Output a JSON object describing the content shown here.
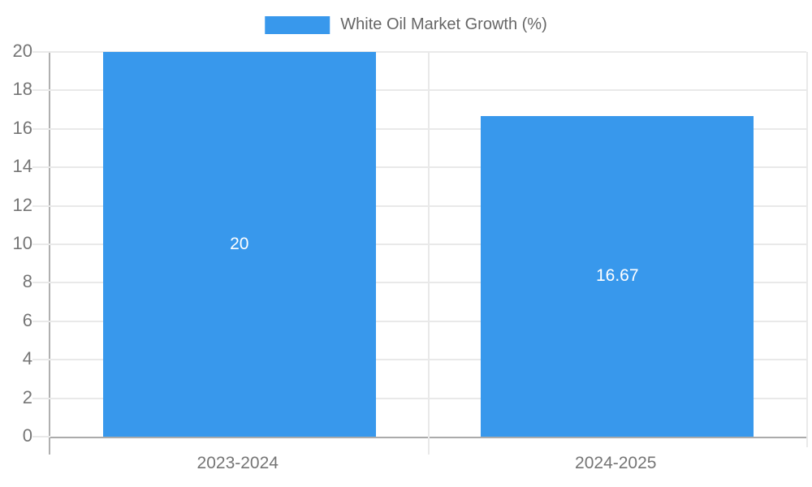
{
  "chart_data": {
    "type": "bar",
    "title": "White Oil Market Growth (%)",
    "categories": [
      "2023-2024",
      "2024-2025"
    ],
    "values": [
      20,
      16.67
    ],
    "value_labels": [
      "20",
      "16.67"
    ],
    "ylim": [
      0,
      20
    ],
    "yticks": [
      0,
      2,
      4,
      6,
      8,
      10,
      12,
      14,
      16,
      18,
      20
    ],
    "xlabel": "",
    "ylabel": "",
    "grid": true,
    "legend_position": "top-center",
    "bar_color": "#3898ec",
    "value_label_color": "#ffffff",
    "axis_label_color": "#757575",
    "legend_text_color": "#666666",
    "gridline_color": "#e9e9e9",
    "axis_line_color": "#ababab"
  }
}
